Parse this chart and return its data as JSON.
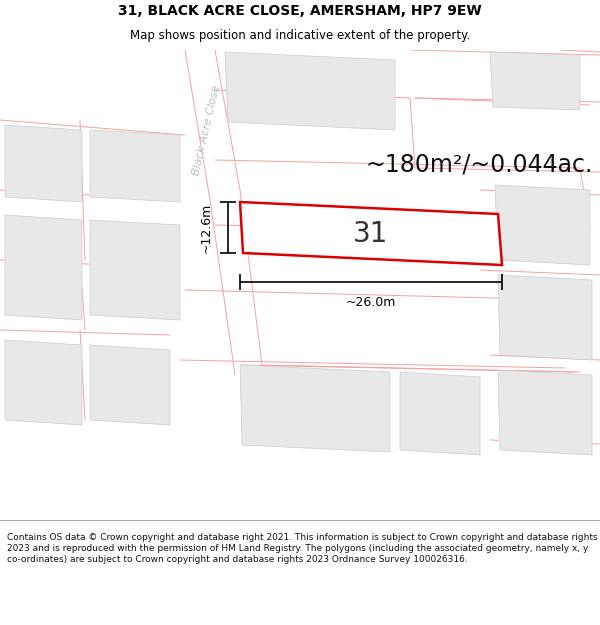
{
  "title_line1": "31, BLACK ACRE CLOSE, AMERSHAM, HP7 9EW",
  "title_line2": "Map shows position and indicative extent of the property.",
  "footer_text": "Contains OS data © Crown copyright and database right 2021. This information is subject to Crown copyright and database rights 2023 and is reproduced with the permission of HM Land Registry. The polygons (including the associated geometry, namely x, y co-ordinates) are subject to Crown copyright and database rights 2023 Ordnance Survey 100026316.",
  "area_text": "~180m²/~0.044ac.",
  "width_label": "~26.0m",
  "height_label": "~12.6m",
  "property_number": "31",
  "street_label": "Black Acre Close",
  "bg_color": "#ffffff",
  "map_bg_color": "#ffffff",
  "plot_line_color": "#f4a0a0",
  "building_fill_color": "#e8e8e8",
  "building_line_color": "#cccccc",
  "property_outline_color": "#dd0000",
  "property_fill_color": "#ffffff",
  "title_fontsize": 10,
  "subtitle_fontsize": 8.5,
  "footer_fontsize": 6.5,
  "area_fontsize": 17,
  "label_fontsize": 9,
  "number_fontsize": 20,
  "street_fontsize": 8
}
